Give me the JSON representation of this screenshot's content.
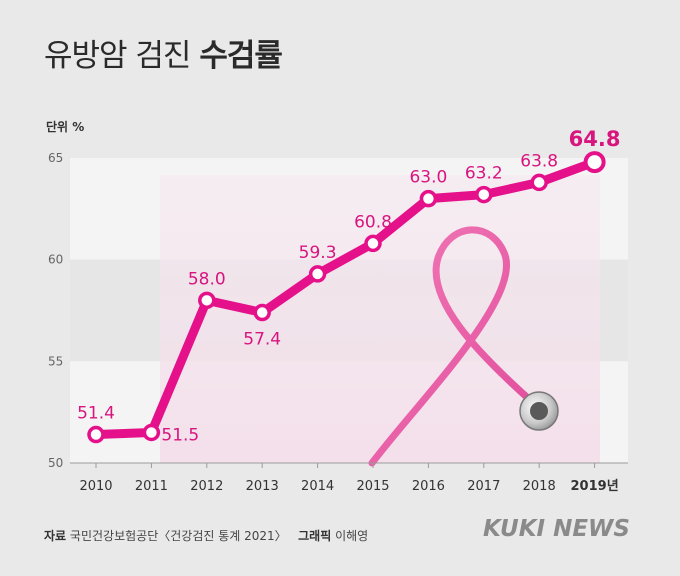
{
  "title": {
    "normal": "유방암 검진 ",
    "bold": "수검률"
  },
  "unit_label": "단위 %",
  "footer": {
    "source_label": "자료",
    "source_text": "국민건강보험공단〈건강검진 통계 2021〉",
    "graphic_label": "그래픽",
    "graphic_text": "이해영"
  },
  "brand": "KUKI NEWS",
  "colors": {
    "line": "#e5118a",
    "label": "#d8157f",
    "background": "#e9e9e9",
    "band_light": "#f4f4f4",
    "band_dark": "#e6e6e6",
    "axis": "#9a9a9a"
  },
  "chart_data": {
    "type": "line",
    "categories": [
      "2010",
      "2011",
      "2012",
      "2013",
      "2014",
      "2015",
      "2016",
      "2017",
      "2018",
      "2019년"
    ],
    "values": [
      51.4,
      51.5,
      58.0,
      57.4,
      59.3,
      60.8,
      63.0,
      63.2,
      63.8,
      64.8
    ],
    "value_labels": [
      "51.4",
      "51.5",
      "58.0",
      "57.4",
      "59.3",
      "60.8",
      "63.0",
      "63.2",
      "63.8",
      "64.8"
    ],
    "ylim": [
      50,
      65
    ],
    "yticks": [
      "50",
      "55",
      "60",
      "65"
    ],
    "ylabel": "단위 %",
    "grid": true,
    "legend": "none"
  }
}
